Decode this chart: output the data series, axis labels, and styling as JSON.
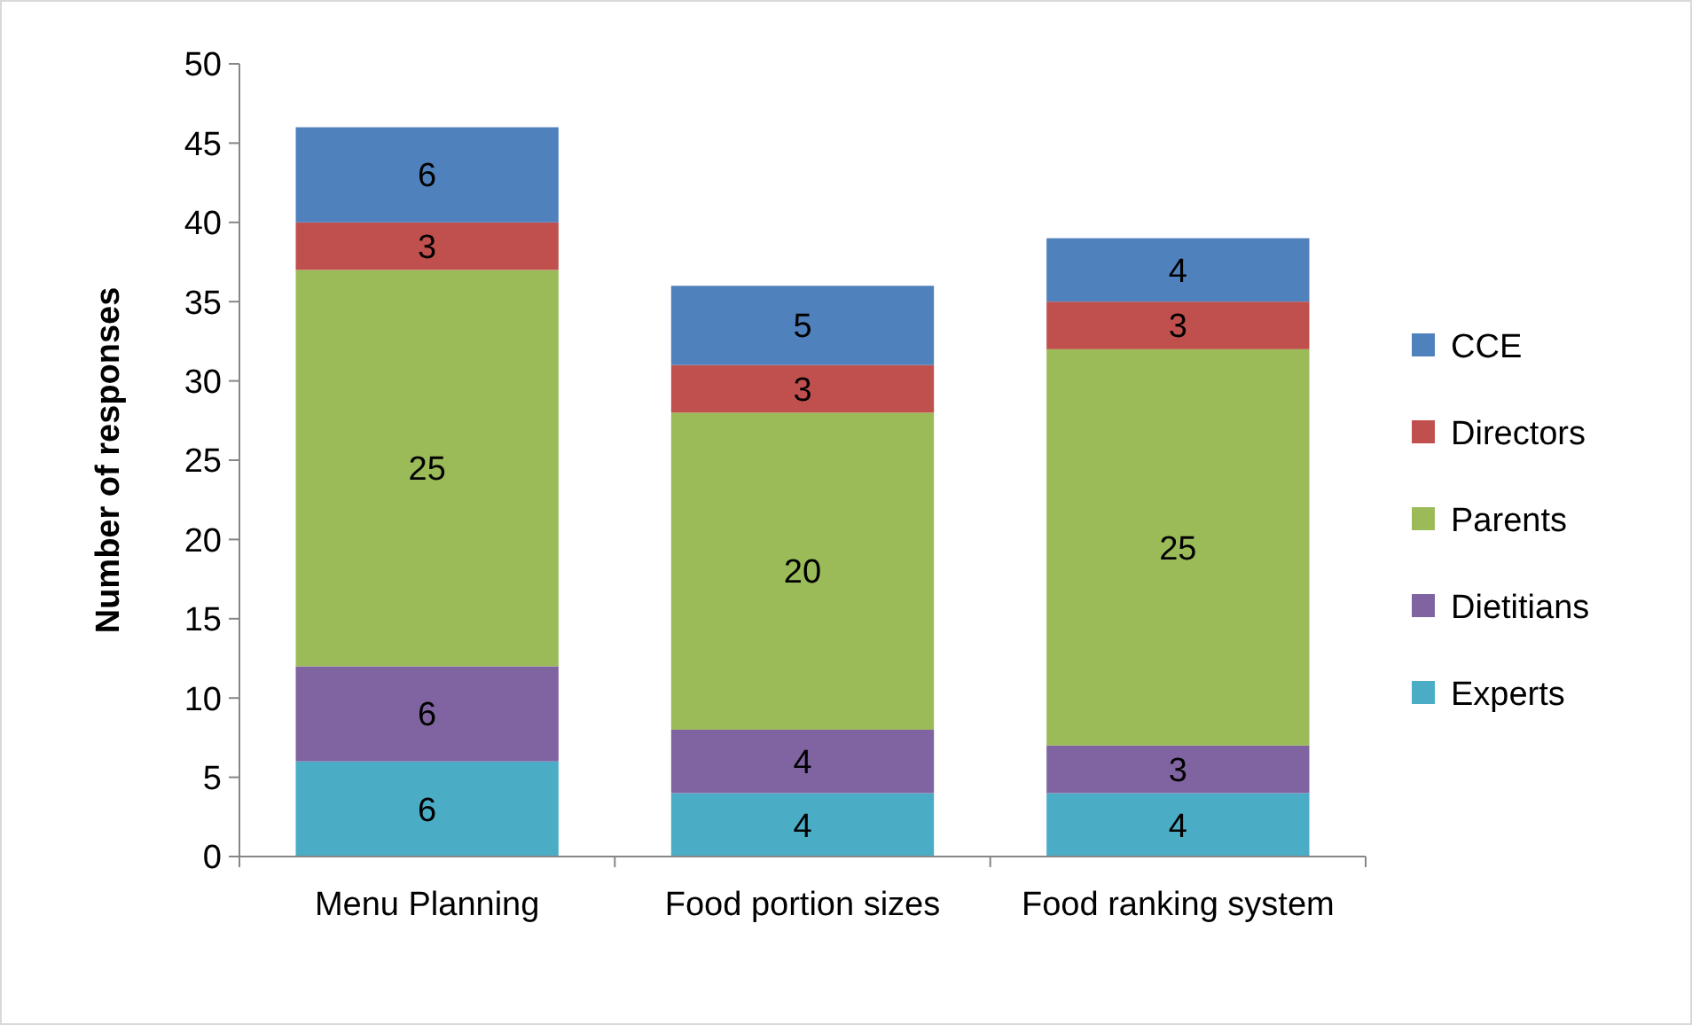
{
  "chart_data": {
    "type": "bar",
    "stacked": true,
    "ylabel": "Number of responses",
    "categories": [
      "Menu Planning",
      "Food portion sizes",
      "Food ranking system"
    ],
    "series": [
      {
        "name": "Experts",
        "color": "#4bacc6",
        "values": [
          6,
          4,
          4
        ]
      },
      {
        "name": "Dietitians",
        "color": "#8064a2",
        "values": [
          6,
          4,
          3
        ]
      },
      {
        "name": "Parents",
        "color": "#9bbb59",
        "values": [
          25,
          20,
          25
        ]
      },
      {
        "name": "Directors",
        "color": "#c0504d",
        "values": [
          3,
          3,
          3
        ]
      },
      {
        "name": "CCE",
        "color": "#4f81bd",
        "values": [
          6,
          5,
          4
        ]
      }
    ],
    "ylim": [
      0,
      50
    ],
    "yticks": [
      0,
      5,
      10,
      15,
      20,
      25,
      30,
      35,
      40,
      45,
      50
    ],
    "data_labels": true,
    "legend": "right",
    "grid": false
  }
}
